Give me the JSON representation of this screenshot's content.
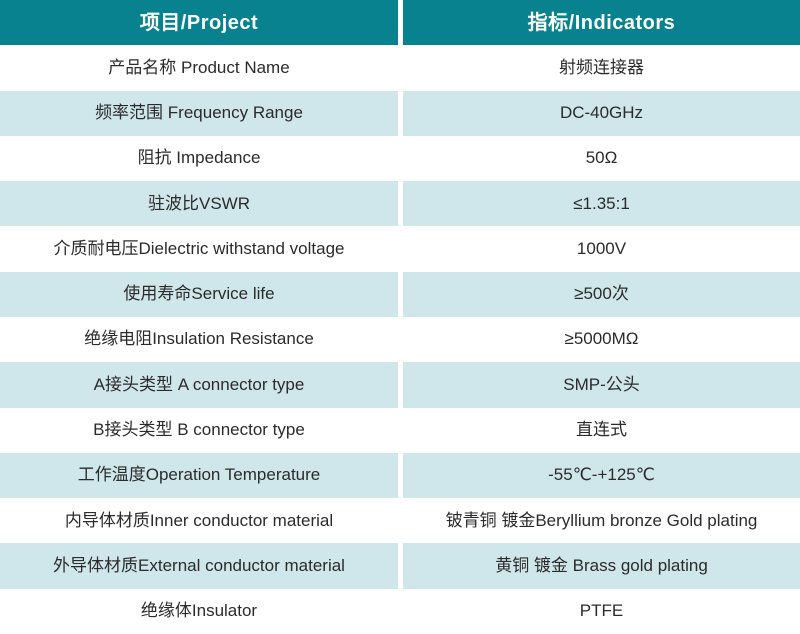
{
  "table": {
    "colors": {
      "header_bg": "#07828e",
      "header_text": "#ffffff",
      "alt_row_bg": "#cfe6ea",
      "plain_row_bg": "#ffffff",
      "body_text": "#2b2b2b"
    },
    "header": {
      "project": "项目/Project",
      "indicators": "指标/Indicators"
    },
    "rows": [
      {
        "project": "产品名称 Product Name",
        "indicator": "射频连接器"
      },
      {
        "project": "频率范围 Frequency Range",
        "indicator": "DC-40GHz"
      },
      {
        "project": "阻抗 Impedance",
        "indicator": "50Ω"
      },
      {
        "project": "驻波比VSWR",
        "indicator": "≤1.35:1"
      },
      {
        "project": "介质耐电压Dielectric withstand voltage",
        "indicator": "1000V"
      },
      {
        "project": "使用寿命Service life",
        "indicator": "≥500次"
      },
      {
        "project": "绝缘电阻Insulation Resistance",
        "indicator": "≥5000MΩ"
      },
      {
        "project": "A接头类型 A connector type",
        "indicator": "SMP-公头"
      },
      {
        "project": "B接头类型 B connector type",
        "indicator": "直连式"
      },
      {
        "project": "工作温度Operation Temperature",
        "indicator": "-55℃-+125℃"
      },
      {
        "project": "内导体材质Inner conductor material",
        "indicator": "铍青铜 镀金Beryllium bronze Gold plating"
      },
      {
        "project": "外导体材质External conductor material",
        "indicator": "黄铜 镀金 Brass gold plating"
      },
      {
        "project": "绝缘体Insulator",
        "indicator": "PTFE"
      }
    ]
  }
}
